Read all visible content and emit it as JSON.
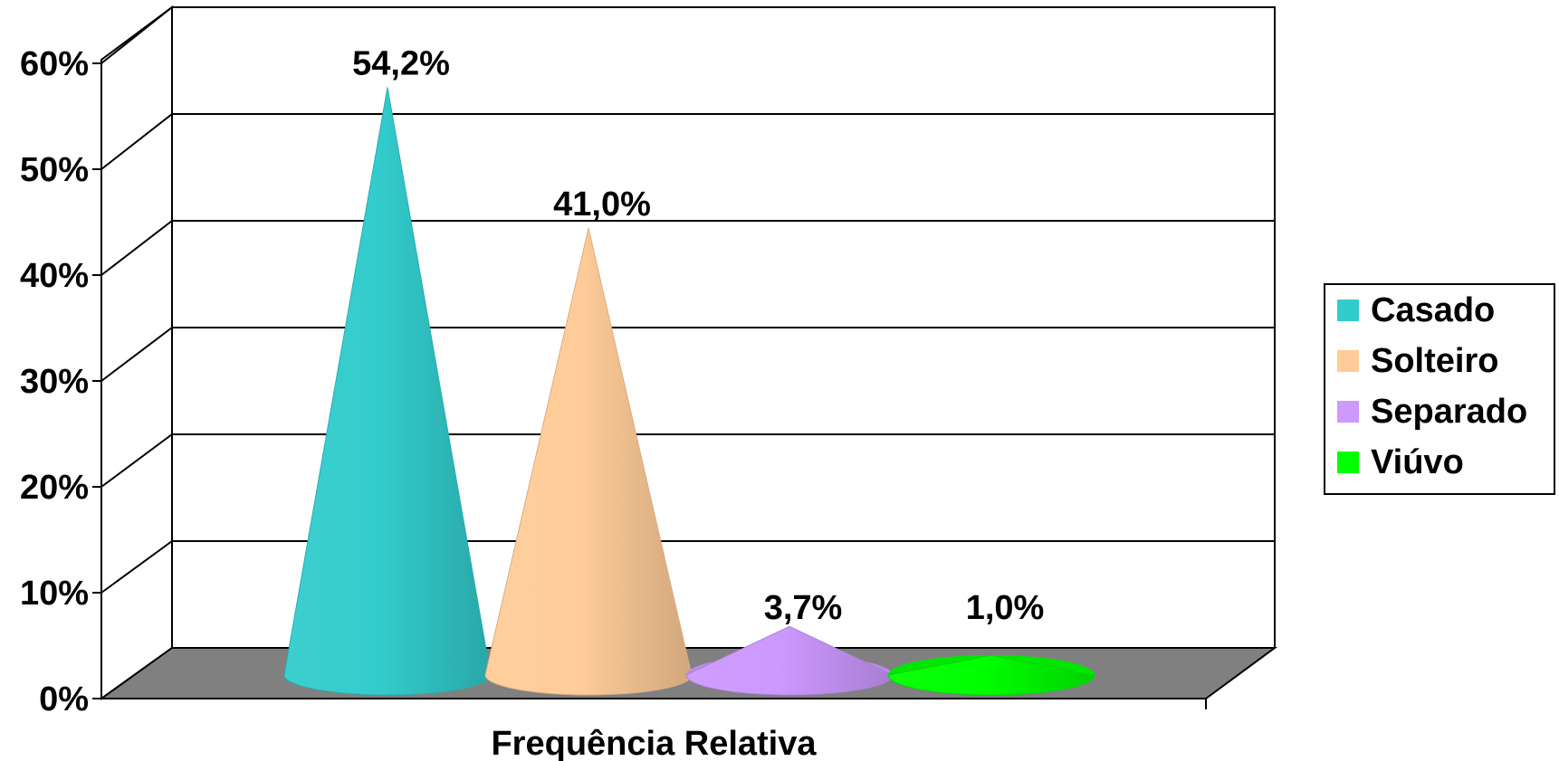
{
  "chart_data": {
    "type": "bar",
    "style": "3d-cone",
    "xlabel": "Frequência Relativa",
    "ylabel": "",
    "title": "",
    "ylim": [
      0,
      60
    ],
    "y_ticks": [
      "0%",
      "10%",
      "20%",
      "30%",
      "40%",
      "50%",
      "60%"
    ],
    "grid": true,
    "legend_position": "right",
    "series": [
      {
        "name": "Casado",
        "value": 54.2,
        "label": "54,2%",
        "color": "#33cccc"
      },
      {
        "name": "Solteiro",
        "value": 41.0,
        "label": "41,0%",
        "color": "#ffcc99"
      },
      {
        "name": "Separado",
        "value": 3.7,
        "label": "3,7%",
        "color": "#cc99ff"
      },
      {
        "name": "Viúvo",
        "value": 1.0,
        "label": "1,0%",
        "color": "#00ff00"
      }
    ]
  }
}
